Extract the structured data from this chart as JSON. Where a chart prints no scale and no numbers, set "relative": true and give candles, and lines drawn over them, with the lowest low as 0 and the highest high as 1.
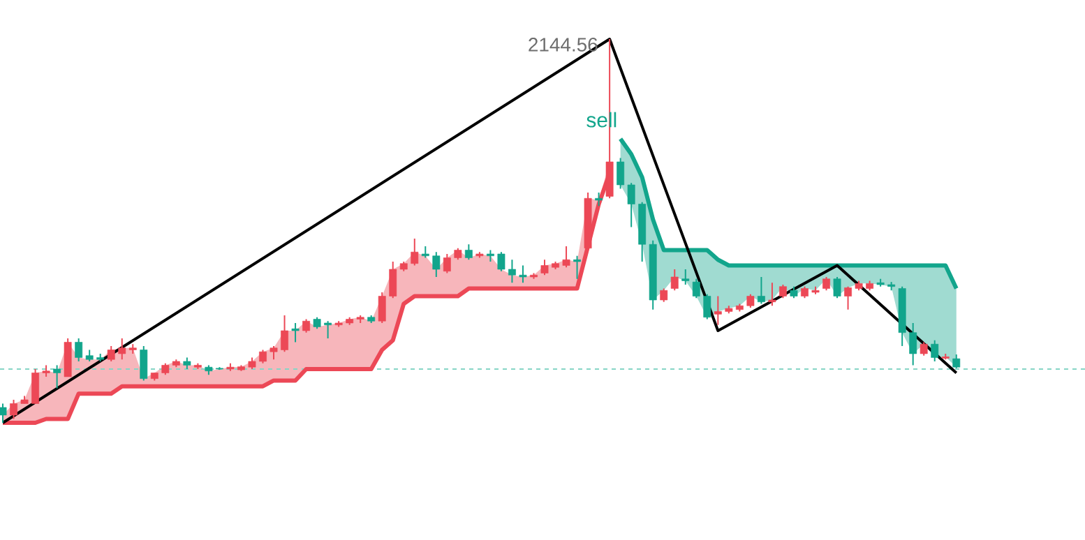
{
  "chart_data": {
    "type": "candlestick",
    "relative": true,
    "categories": [
      null,
      null,
      null,
      null,
      null,
      null,
      null,
      null,
      null,
      null,
      null,
      null,
      null,
      null,
      null,
      null,
      null,
      null,
      null,
      null,
      null,
      null,
      null,
      null,
      null,
      null,
      null,
      null,
      null,
      null,
      null,
      null,
      null,
      null,
      null,
      null,
      null,
      null,
      null,
      null,
      null,
      null,
      null,
      null,
      null,
      null,
      null,
      null,
      null,
      null,
      null,
      null,
      null,
      null,
      null,
      null,
      null,
      null,
      null,
      null,
      null,
      null,
      null,
      null,
      null,
      null,
      null,
      null,
      null,
      null,
      null,
      null,
      null,
      null,
      null,
      null,
      null,
      null,
      null,
      null,
      null,
      null,
      null,
      null,
      null,
      null,
      null,
      null,
      null
    ],
    "ohlc": [
      [
        0.04,
        0.05,
        0,
        0.02
      ],
      [
        0.02,
        0.06,
        0.01,
        0.05
      ],
      [
        0.05,
        0.07,
        0.05,
        0.06
      ],
      [
        0.05,
        0.14,
        0.05,
        0.13
      ],
      [
        0.13,
        0.15,
        0.12,
        0.135
      ],
      [
        0.14,
        0.15,
        0.09,
        0.13
      ],
      [
        0.12,
        0.22,
        0.12,
        0.21
      ],
      [
        0.21,
        0.22,
        0.16,
        0.17
      ],
      [
        0.175,
        0.19,
        0.16,
        0.165
      ],
      [
        0.17,
        0.18,
        0.16,
        0.165
      ],
      [
        0.165,
        0.2,
        0.16,
        0.19
      ],
      [
        0.18,
        0.22,
        0.165,
        0.195
      ],
      [
        0.19,
        0.205,
        0.18,
        0.195
      ],
      [
        0.19,
        0.2,
        0.11,
        0.115
      ],
      [
        0.115,
        0.13,
        0.11,
        0.13
      ],
      [
        0.13,
        0.155,
        0.125,
        0.15
      ],
      [
        0.15,
        0.165,
        0.145,
        0.16
      ],
      [
        0.16,
        0.17,
        0.14,
        0.15
      ],
      [
        0.145,
        0.155,
        0.14,
        0.15
      ],
      [
        0.145,
        0.15,
        0.125,
        0.135
      ],
      [
        0.142,
        0.145,
        0.138,
        0.14
      ],
      [
        0.14,
        0.155,
        0.135,
        0.145
      ],
      [
        0.138,
        0.15,
        0.135,
        0.146
      ],
      [
        0.145,
        0.17,
        0.14,
        0.16
      ],
      [
        0.16,
        0.19,
        0.155,
        0.185
      ],
      [
        0.185,
        0.2,
        0.165,
        0.195
      ],
      [
        0.19,
        0.28,
        0.185,
        0.24
      ],
      [
        0.245,
        0.26,
        0.21,
        0.24
      ],
      [
        0.24,
        0.27,
        0.235,
        0.265
      ],
      [
        0.27,
        0.275,
        0.245,
        0.25
      ],
      [
        0.26,
        0.265,
        0.22,
        0.255
      ],
      [
        0.255,
        0.265,
        0.25,
        0.26
      ],
      [
        0.26,
        0.275,
        0.255,
        0.27
      ],
      [
        0.27,
        0.28,
        0.26,
        0.275
      ],
      [
        0.275,
        0.28,
        0.26,
        0.265
      ],
      [
        0.265,
        0.34,
        0.26,
        0.33
      ],
      [
        0.33,
        0.42,
        0.325,
        0.4
      ],
      [
        0.4,
        0.42,
        0.395,
        0.415
      ],
      [
        0.415,
        0.48,
        0.41,
        0.445
      ],
      [
        0.44,
        0.46,
        0.43,
        0.435
      ],
      [
        0.435,
        0.445,
        0.38,
        0.4
      ],
      [
        0.395,
        0.44,
        0.39,
        0.43
      ],
      [
        0.43,
        0.455,
        0.425,
        0.45
      ],
      [
        0.45,
        0.465,
        0.425,
        0.43
      ],
      [
        0.435,
        0.445,
        0.43,
        0.44
      ],
      [
        0.44,
        0.45,
        0.42,
        0.435
      ],
      [
        0.44,
        0.445,
        0.395,
        0.4
      ],
      [
        0.4,
        0.425,
        0.365,
        0.385
      ],
      [
        0.385,
        0.41,
        0.365,
        0.38
      ],
      [
        0.38,
        0.39,
        0.375,
        0.385
      ],
      [
        0.39,
        0.425,
        0.385,
        0.41
      ],
      [
        0.405,
        0.42,
        0.4,
        0.415
      ],
      [
        0.41,
        0.46,
        0.405,
        0.425
      ],
      [
        0.425,
        0.435,
        0.375,
        0.42
      ],
      [
        0.455,
        0.6,
        0.45,
        0.585
      ],
      [
        0.585,
        0.6,
        0.565,
        0.58
      ],
      [
        0.59,
        1,
        0.585,
        0.68
      ],
      [
        0.68,
        0.69,
        0.61,
        0.62
      ],
      [
        0.62,
        0.625,
        0.51,
        0.57
      ],
      [
        0.57,
        0.575,
        0.42,
        0.465
      ],
      [
        0.465,
        0.475,
        0.295,
        0.32
      ],
      [
        0.32,
        0.35,
        0.315,
        0.345
      ],
      [
        0.35,
        0.4,
        0.345,
        0.38
      ],
      [
        0.375,
        0.4,
        0.36,
        0.37
      ],
      [
        0.367,
        0.375,
        0.325,
        0.33
      ],
      [
        0.33,
        0.335,
        0.27,
        0.275
      ],
      [
        0.283,
        0.33,
        0.255,
        0.29
      ],
      [
        0.29,
        0.305,
        0.285,
        0.298
      ],
      [
        0.295,
        0.31,
        0.29,
        0.305
      ],
      [
        0.305,
        0.335,
        0.3,
        0.33
      ],
      [
        0.33,
        0.38,
        0.31,
        0.315
      ],
      [
        0.315,
        0.365,
        0.305,
        0.32
      ],
      [
        0.33,
        0.36,
        0.325,
        0.355
      ],
      [
        0.345,
        0.355,
        0.325,
        0.33
      ],
      [
        0.33,
        0.355,
        0.325,
        0.35
      ],
      [
        0.34,
        0.355,
        0.335,
        0.345
      ],
      [
        0.35,
        0.38,
        0.345,
        0.375
      ],
      [
        0.375,
        0.38,
        0.325,
        0.33
      ],
      [
        0.33,
        0.355,
        0.295,
        0.352
      ],
      [
        0.35,
        0.37,
        0.345,
        0.363
      ],
      [
        0.35,
        0.37,
        0.345,
        0.363
      ],
      [
        0.365,
        0.375,
        0.355,
        0.36
      ],
      [
        0.36,
        0.367,
        0.345,
        0.355
      ],
      [
        0.35,
        0.355,
        0.2,
        0.235
      ],
      [
        0.235,
        0.26,
        0.15,
        0.18
      ],
      [
        0.18,
        0.21,
        0.175,
        0.205
      ],
      [
        0.205,
        0.215,
        0.16,
        0.17
      ],
      [
        0.168,
        0.18,
        0.165,
        0.172
      ],
      [
        0.167,
        0.178,
        0.142,
        0.145
      ]
    ],
    "series": [
      {
        "type": "line",
        "color": "#ec4856",
        "values": [
          0,
          0,
          0,
          0,
          0.01,
          0.01,
          0.01,
          0.076,
          0.076,
          0.076,
          0.076,
          0.095,
          0.095,
          0.095,
          0.095,
          0.095,
          0.095,
          0.095,
          0.095,
          0.095,
          0.095,
          0.095,
          0.095,
          0.095,
          0.095,
          0.11,
          0.11,
          0.11,
          0.14,
          0.14,
          0.14,
          0.14,
          0.14,
          0.14,
          0.14,
          0.19,
          0.215,
          0.31,
          0.33,
          0.33,
          0.33,
          0.33,
          0.33,
          0.35,
          0.35,
          0.35,
          0.35,
          0.35,
          0.35,
          0.35,
          0.35,
          0.35,
          0.35,
          0.35,
          0.46,
          0.57,
          0.65,
          null,
          null,
          null,
          null,
          null,
          null,
          null,
          null,
          null,
          null,
          null,
          null,
          null,
          null,
          null,
          null,
          null,
          null,
          null,
          null,
          null,
          null,
          null,
          null,
          null,
          null,
          null,
          null,
          null,
          null,
          null,
          null
        ],
        "lower": [
          0,
          0,
          0,
          0,
          0.01,
          0.01,
          0.01,
          0.076,
          0.076,
          0.076,
          0.076,
          0.095,
          0.095,
          0.095,
          0.095,
          0.095,
          0.095,
          0.095,
          0.095,
          0.095,
          0.095,
          0.095,
          0.095,
          0.095,
          0.095,
          0.11,
          0.11,
          0.11,
          0.14,
          0.14,
          0.14,
          0.14,
          0.14,
          0.14,
          0.14,
          0.19,
          0.215,
          0.31,
          0.33,
          0.33,
          0.33,
          0.33,
          0.33,
          0.35,
          0.35,
          0.35,
          0.35,
          0.35,
          0.35,
          0.35,
          0.35,
          0.35,
          0.35,
          0.35,
          0.46,
          0.57,
          0.65,
          null,
          null,
          null,
          null,
          null,
          null,
          null,
          null,
          null,
          null,
          null,
          null,
          null,
          null,
          null,
          null,
          null,
          null,
          null,
          null,
          null,
          null,
          null,
          null,
          null,
          null,
          null,
          null,
          null,
          null,
          null,
          null
        ],
        "upper": [
          0.02,
          0.05,
          0.06,
          0.13,
          0.135,
          0.13,
          0.21,
          0.17,
          0.165,
          0.165,
          0.19,
          0.195,
          0.195,
          0.115,
          0.13,
          0.15,
          0.16,
          0.15,
          0.15,
          0.135,
          0.14,
          0.145,
          0.146,
          0.16,
          0.185,
          0.195,
          0.24,
          0.24,
          0.265,
          0.25,
          0.255,
          0.26,
          0.27,
          0.275,
          0.265,
          0.33,
          0.4,
          0.415,
          0.445,
          0.435,
          0.4,
          0.43,
          0.45,
          0.43,
          0.44,
          0.435,
          0.4,
          0.385,
          0.38,
          0.385,
          0.41,
          0.415,
          0.425,
          0.42,
          0.585,
          0.58,
          0.68,
          null,
          null,
          null,
          null,
          null,
          null,
          null,
          null,
          null,
          null,
          null,
          null,
          null,
          null,
          null,
          null,
          null,
          null,
          null,
          null,
          null,
          null,
          null,
          null,
          null,
          null,
          null,
          null,
          null,
          null,
          null,
          null
        ]
      },
      {
        "type": "line",
        "color": "#12a58c",
        "values": [
          null,
          null,
          null,
          null,
          null,
          null,
          null,
          null,
          null,
          null,
          null,
          null,
          null,
          null,
          null,
          null,
          null,
          null,
          null,
          null,
          null,
          null,
          null,
          null,
          null,
          null,
          null,
          null,
          null,
          null,
          null,
          null,
          null,
          null,
          null,
          null,
          null,
          null,
          null,
          null,
          null,
          null,
          null,
          null,
          null,
          null,
          null,
          null,
          null,
          null,
          null,
          null,
          null,
          null,
          null,
          null,
          null,
          0.74,
          0.7,
          0.64,
          0.53,
          0.45,
          0.45,
          0.45,
          0.45,
          0.45,
          0.425,
          0.41,
          0.41,
          0.41,
          0.41,
          0.41,
          0.41,
          0.41,
          0.41,
          0.41,
          0.41,
          0.41,
          0.41,
          0.41,
          0.41,
          0.41,
          0.41,
          0.41,
          0.41,
          0.41,
          0.41,
          0.41,
          0.35
        ],
        "lower": [
          null,
          null,
          null,
          null,
          null,
          null,
          null,
          null,
          null,
          null,
          null,
          null,
          null,
          null,
          null,
          null,
          null,
          null,
          null,
          null,
          null,
          null,
          null,
          null,
          null,
          null,
          null,
          null,
          null,
          null,
          null,
          null,
          null,
          null,
          null,
          null,
          null,
          null,
          null,
          null,
          null,
          null,
          null,
          null,
          null,
          null,
          null,
          null,
          null,
          null,
          null,
          null,
          null,
          null,
          null,
          null,
          null,
          0.62,
          0.57,
          0.465,
          0.32,
          0.345,
          0.38,
          0.37,
          0.33,
          0.275,
          0.29,
          0.298,
          0.305,
          0.33,
          0.315,
          0.32,
          0.355,
          0.33,
          0.35,
          0.345,
          0.375,
          0.33,
          0.352,
          0.363,
          0.363,
          0.36,
          0.355,
          0.235,
          0.18,
          0.205,
          0.17,
          0.172,
          0.145
        ],
        "upper": [
          null,
          null,
          null,
          null,
          null,
          null,
          null,
          null,
          null,
          null,
          null,
          null,
          null,
          null,
          null,
          null,
          null,
          null,
          null,
          null,
          null,
          null,
          null,
          null,
          null,
          null,
          null,
          null,
          null,
          null,
          null,
          null,
          null,
          null,
          null,
          null,
          null,
          null,
          null,
          null,
          null,
          null,
          null,
          null,
          null,
          null,
          null,
          null,
          null,
          null,
          null,
          null,
          null,
          null,
          null,
          null,
          null,
          0.74,
          0.7,
          0.64,
          0.53,
          0.45,
          0.45,
          0.45,
          0.45,
          0.45,
          0.425,
          0.41,
          0.41,
          0.41,
          0.41,
          0.41,
          0.41,
          0.41,
          0.41,
          0.41,
          0.41,
          0.41,
          0.41,
          0.41,
          0.41,
          0.41,
          0.41,
          0.41,
          0.41,
          0.41,
          0.41,
          0.41,
          0.35
        ]
      },
      {
        "type": "line",
        "color": "#000000",
        "values": [
          0,
          null,
          null,
          null,
          null,
          null,
          null,
          null,
          null,
          null,
          null,
          null,
          null,
          null,
          null,
          null,
          null,
          null,
          null,
          null,
          null,
          null,
          null,
          null,
          null,
          null,
          null,
          null,
          null,
          null,
          null,
          null,
          null,
          null,
          null,
          null,
          null,
          null,
          null,
          null,
          null,
          null,
          null,
          null,
          null,
          null,
          null,
          null,
          null,
          null,
          null,
          null,
          null,
          null,
          null,
          null,
          1,
          null,
          null,
          null,
          null,
          null,
          null,
          null,
          null,
          null,
          0.24,
          null,
          null,
          null,
          null,
          null,
          null,
          null,
          null,
          null,
          null,
          0.41,
          null,
          null,
          null,
          null,
          null,
          null,
          null,
          null,
          null,
          null,
          0.13
        ]
      }
    ],
    "ref_lines": [
      {
        "axis": "y",
        "value": 0.14,
        "color": "#86d5c6",
        "line_style": "dashed"
      }
    ],
    "annotations": [
      "2144.56",
      "sell"
    ]
  }
}
